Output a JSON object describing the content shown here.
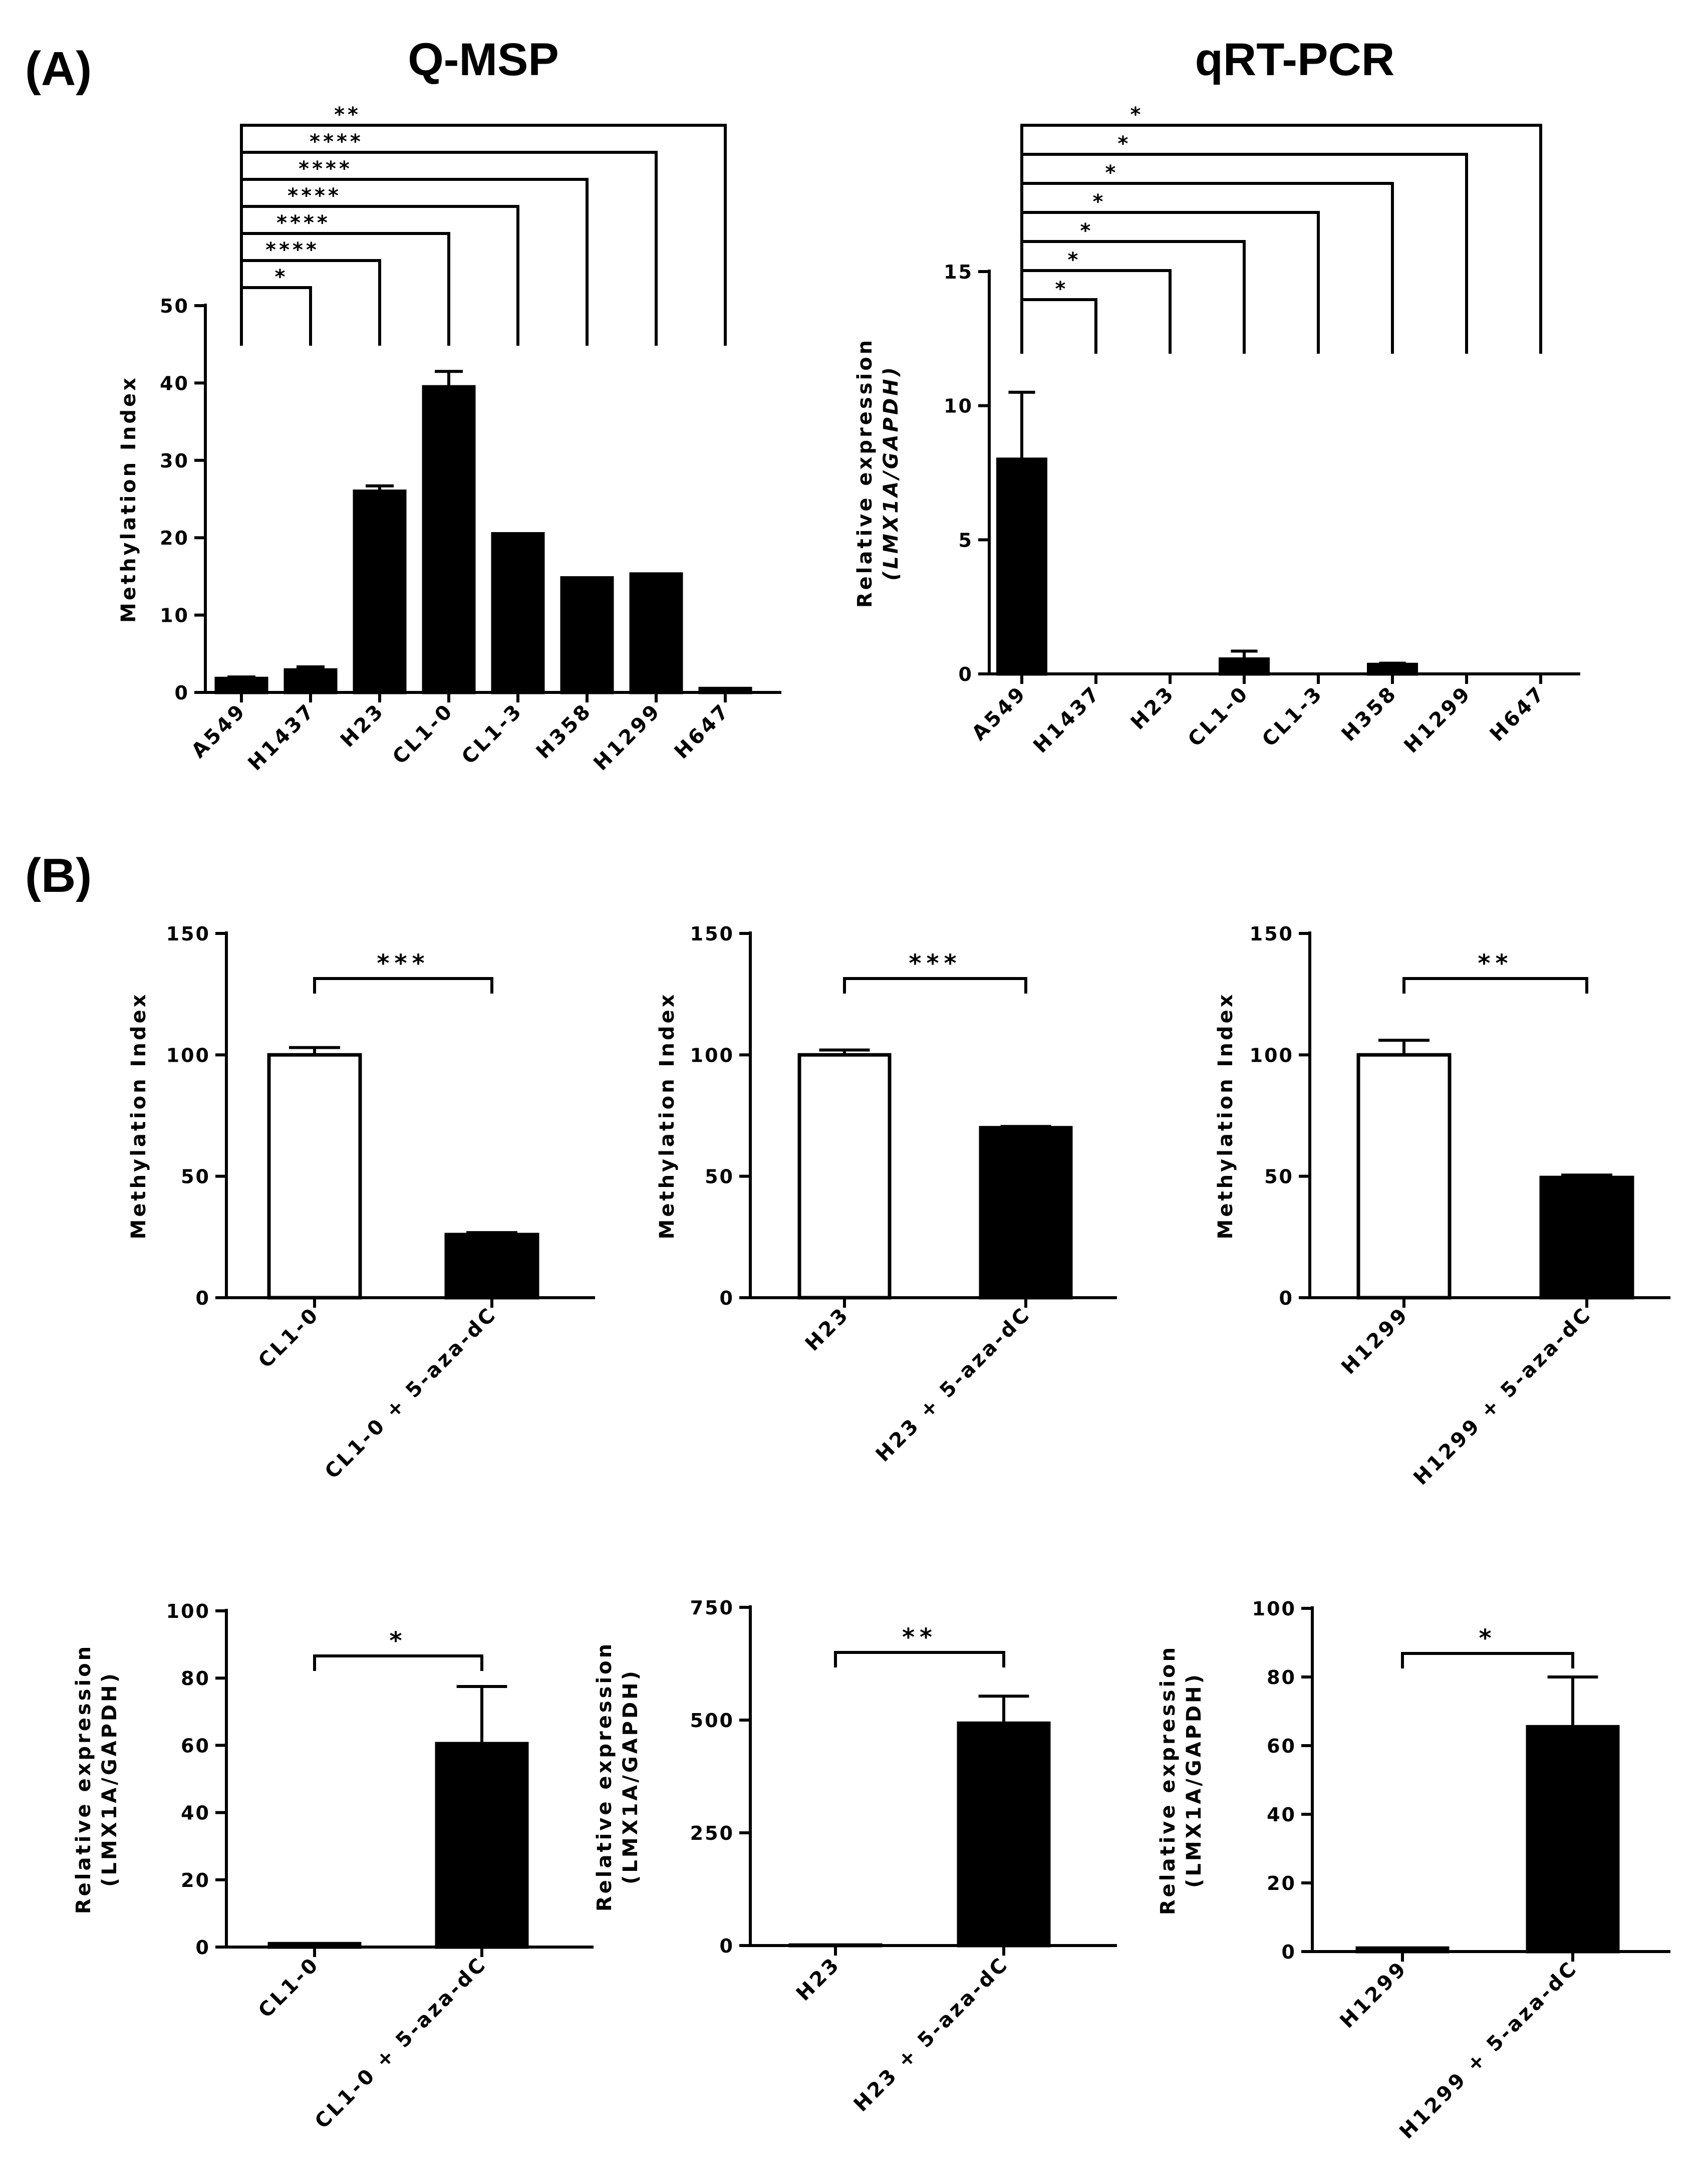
{
  "panel_labels": {
    "a": "(A)",
    "b": "(B)"
  },
  "chart_data": [
    {
      "id": "qmsp",
      "type": "bar",
      "title": "Q-MSP",
      "ylabel": "Methylation Index",
      "categories": [
        "A549",
        "H1437",
        "H23",
        "CL1-0",
        "CL1-3",
        "H358",
        "H1299",
        "H647"
      ],
      "values": [
        1.8,
        2.9,
        26,
        39.5,
        20.5,
        14.8,
        15.3,
        0.5
      ],
      "errors": [
        0.2,
        0.4,
        0.7,
        2,
        0,
        0,
        0,
        0
      ],
      "fills": [
        "#000000",
        "#000000",
        "#000000",
        "#000000",
        "#000000",
        "#000000",
        "#000000",
        "#000000"
      ],
      "ylim": [
        0,
        50
      ],
      "yticks": [
        0,
        10,
        20,
        30,
        40,
        50
      ],
      "comparisons": [
        {
          "from": 0,
          "to": 1,
          "label": "*"
        },
        {
          "from": 0,
          "to": 2,
          "label": "****"
        },
        {
          "from": 0,
          "to": 3,
          "label": "****"
        },
        {
          "from": 0,
          "to": 4,
          "label": "****"
        },
        {
          "from": 0,
          "to": 5,
          "label": "****"
        },
        {
          "from": 0,
          "to": 6,
          "label": "****"
        },
        {
          "from": 0,
          "to": 7,
          "label": "**"
        }
      ]
    },
    {
      "id": "qrtpcr",
      "type": "bar",
      "title": "qRT-PCR",
      "ylabel_lines": [
        "Relative expression",
        "(LMX1A/GAPDH)"
      ],
      "categories": [
        "A549",
        "H1437",
        "H23",
        "CL1-0",
        "CL1-3",
        "H358",
        "H1299",
        "H647"
      ],
      "values": [
        8,
        0,
        0,
        0.55,
        0,
        0.35,
        0,
        0
      ],
      "errors": [
        2.5,
        0,
        0,
        0.3,
        0,
        0.05,
        0,
        0
      ],
      "fills": [
        "#000000",
        "#000000",
        "#000000",
        "#000000",
        "#000000",
        "#000000",
        "#000000",
        "#000000"
      ],
      "ylim": [
        0,
        15
      ],
      "yticks": [
        0,
        5,
        10,
        15
      ],
      "comparisons": [
        {
          "from": 0,
          "to": 1,
          "label": "*"
        },
        {
          "from": 0,
          "to": 2,
          "label": "*"
        },
        {
          "from": 0,
          "to": 3,
          "label": "*"
        },
        {
          "from": 0,
          "to": 4,
          "label": "*"
        },
        {
          "from": 0,
          "to": 5,
          "label": "*"
        },
        {
          "from": 0,
          "to": 6,
          "label": "*"
        },
        {
          "from": 0,
          "to": 7,
          "label": "*"
        }
      ]
    },
    {
      "id": "b-meth-cl10",
      "type": "bar",
      "ylabel": "Methylation Index",
      "categories": [
        "CL1-0",
        "CL1-0 + 5-aza-dC"
      ],
      "values": [
        100,
        26
      ],
      "errors": [
        3,
        0.8
      ],
      "fills": [
        "#ffffff",
        "#000000"
      ],
      "ylim": [
        0,
        150
      ],
      "yticks": [
        0,
        50,
        100,
        150
      ],
      "comparisons": [
        {
          "from": 0,
          "to": 1,
          "label": "***"
        }
      ]
    },
    {
      "id": "b-meth-h23",
      "type": "bar",
      "ylabel": "Methylation Index",
      "categories": [
        "H23",
        "H23 + 5-aza-dC"
      ],
      "values": [
        100,
        70
      ],
      "errors": [
        2,
        0.5
      ],
      "fills": [
        "#ffffff",
        "#000000"
      ],
      "ylim": [
        0,
        150
      ],
      "yticks": [
        0,
        50,
        100,
        150
      ],
      "comparisons": [
        {
          "from": 0,
          "to": 1,
          "label": "***"
        }
      ]
    },
    {
      "id": "b-meth-h1299",
      "type": "bar",
      "ylabel": "Methylation Index",
      "categories": [
        "H1299",
        "H1299 + 5-aza-dC"
      ],
      "values": [
        100,
        49.5
      ],
      "errors": [
        6,
        1
      ],
      "fills": [
        "#ffffff",
        "#000000"
      ],
      "ylim": [
        0,
        150
      ],
      "yticks": [
        0,
        50,
        100,
        150
      ],
      "comparisons": [
        {
          "from": 0,
          "to": 1,
          "label": "**"
        }
      ]
    },
    {
      "id": "b-expr-cl10",
      "type": "bar",
      "ylabel_lines": [
        "Relative expression",
        "(LMX1A/GAPDH)"
      ],
      "categories": [
        "CL1-0",
        "CL1-0 + 5-aza-dC"
      ],
      "values": [
        1,
        60.5
      ],
      "errors": [
        0,
        17
      ],
      "fills": [
        "#000000",
        "#000000"
      ],
      "ylim": [
        0,
        100
      ],
      "yticks": [
        0,
        20,
        40,
        60,
        80,
        100
      ],
      "comparisons": [
        {
          "from": 0,
          "to": 1,
          "label": "*"
        }
      ]
    },
    {
      "id": "b-expr-h23",
      "type": "bar",
      "ylabel_lines": [
        "Relative expression",
        "(LMX1A/GAPDH)"
      ],
      "categories": [
        "H23",
        "H23 + 5-aza-dC"
      ],
      "values": [
        1,
        493
      ],
      "errors": [
        0,
        60
      ],
      "fills": [
        "#000000",
        "#000000"
      ],
      "ylim": [
        0,
        750
      ],
      "yticks": [
        0,
        250,
        500,
        750
      ],
      "comparisons": [
        {
          "from": 0,
          "to": 1,
          "label": "**"
        }
      ]
    },
    {
      "id": "b-expr-h1299",
      "type": "bar",
      "ylabel_lines": [
        "Relative expression",
        "(LMX1A/GAPDH)"
      ],
      "categories": [
        "H1299",
        "H1299 + 5-aza-dC"
      ],
      "values": [
        1,
        65.5
      ],
      "errors": [
        0,
        14.5
      ],
      "fills": [
        "#000000",
        "#000000"
      ],
      "ylim": [
        0,
        100
      ],
      "yticks": [
        0,
        20,
        40,
        60,
        80,
        100
      ],
      "comparisons": [
        {
          "from": 0,
          "to": 1,
          "label": "*"
        }
      ]
    }
  ]
}
